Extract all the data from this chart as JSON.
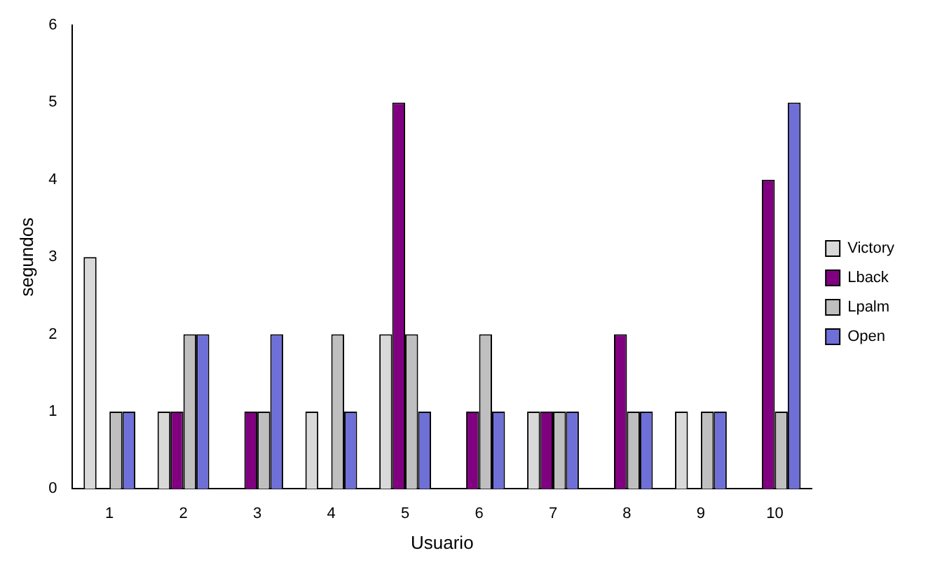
{
  "chart_data": {
    "type": "bar",
    "xlabel": "Usuario",
    "ylabel": "segundos",
    "categories": [
      "1",
      "2",
      "3",
      "4",
      "5",
      "6",
      "7",
      "8",
      "9",
      "10"
    ],
    "series": [
      {
        "name": "Victory",
        "color": "#d9d9d9",
        "values": [
          3,
          1,
          0,
          1,
          2,
          0,
          1,
          0,
          1,
          0
        ]
      },
      {
        "name": "Lback",
        "color": "#800080",
        "values": [
          0,
          1,
          1,
          0,
          5,
          1,
          1,
          2,
          0,
          4
        ]
      },
      {
        "name": "Lpalm",
        "color": "#bfbfbf",
        "values": [
          1,
          2,
          1,
          2,
          2,
          2,
          1,
          1,
          1,
          1
        ]
      },
      {
        "name": "Open",
        "color": "#6f6fd8",
        "values": [
          1,
          2,
          2,
          1,
          1,
          1,
          1,
          1,
          1,
          5
        ]
      }
    ],
    "ylim": [
      0,
      6
    ],
    "yticks": [
      0,
      1,
      2,
      3,
      4,
      5,
      6
    ],
    "grid": false,
    "legend": "right"
  }
}
